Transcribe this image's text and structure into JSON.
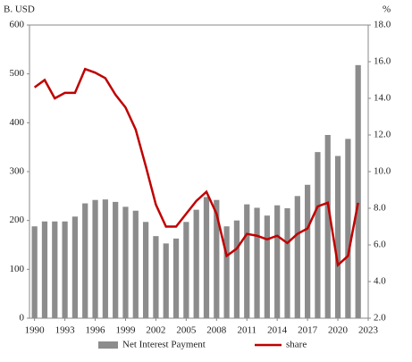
{
  "chart_data": {
    "type": "bar-line",
    "y_axis_label": "B. USD",
    "y2_axis_label": "%",
    "x": [
      1990,
      1991,
      1992,
      1993,
      1994,
      1995,
      1996,
      1997,
      1998,
      1999,
      2000,
      2001,
      2002,
      2003,
      2004,
      2005,
      2006,
      2007,
      2008,
      2009,
      2010,
      2011,
      2012,
      2013,
      2014,
      2015,
      2016,
      2017,
      2018,
      2019,
      2020,
      2021,
      2022
    ],
    "xlim": [
      1989.5,
      2023
    ],
    "xticks": [
      1990,
      1993,
      1996,
      1999,
      2002,
      2005,
      2008,
      2011,
      2014,
      2017,
      2020,
      2023
    ],
    "ylim": [
      0,
      600
    ],
    "yticks": [
      0,
      100,
      200,
      300,
      400,
      500,
      600
    ],
    "y2lim": [
      2,
      18
    ],
    "y2ticks": [
      {
        "value": 2,
        "label": "2.0"
      },
      {
        "value": 4,
        "label": "4.0"
      },
      {
        "value": 6,
        "label": "6.0"
      },
      {
        "value": 8,
        "label": "8.0"
      },
      {
        "value": 10,
        "label": "10.0"
      },
      {
        "value": 12,
        "label": "12.0"
      },
      {
        "value": 14,
        "label": "14.0"
      },
      {
        "value": 16,
        "label": "16.0"
      },
      {
        "value": 18,
        "label": "18.0"
      }
    ],
    "series": [
      {
        "name": "Net Interest Payment",
        "color": "#8c8c8c",
        "kind": "bar",
        "values": [
          188,
          198,
          198,
          198,
          208,
          235,
          242,
          243,
          238,
          228,
          220,
          197,
          168,
          153,
          163,
          197,
          222,
          248,
          242,
          188,
          200,
          233,
          226,
          210,
          231,
          225,
          250,
          273,
          340,
          375,
          332,
          367,
          518
        ]
      },
      {
        "name": "share",
        "color": "#c00000",
        "kind": "line",
        "axis": "y2",
        "values": [
          14.6,
          15.0,
          14.0,
          14.3,
          14.3,
          15.6,
          15.4,
          15.1,
          14.2,
          13.5,
          12.3,
          10.3,
          8.2,
          7.0,
          7.0,
          7.7,
          8.4,
          8.9,
          7.7,
          5.4,
          5.8,
          6.6,
          6.5,
          6.3,
          6.5,
          6.1,
          6.6,
          6.9,
          8.1,
          8.3,
          4.9,
          5.4,
          8.3
        ]
      }
    ],
    "grid": false,
    "legend": "bottom"
  }
}
